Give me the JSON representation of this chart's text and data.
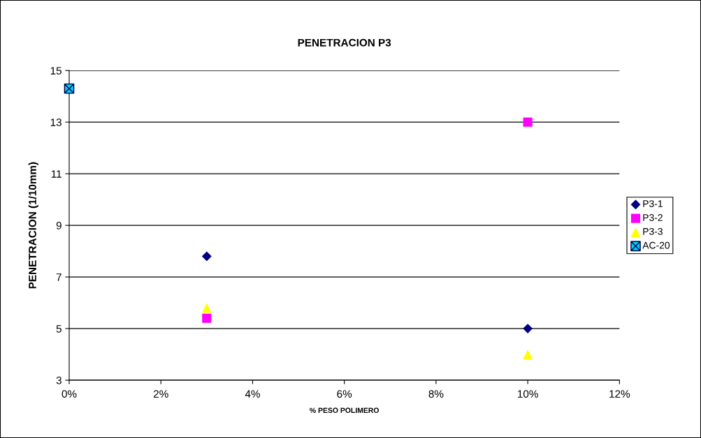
{
  "chart_data": {
    "type": "scatter",
    "title": "PENETRACION P3",
    "xlabel": "% PESO POLIMERO",
    "ylabel": "PENETRACION (1/10mm)",
    "xlim": [
      0,
      12
    ],
    "xticks": [
      {
        "value": 0,
        "label": "0%"
      },
      {
        "value": 2,
        "label": "2%"
      },
      {
        "value": 4,
        "label": "4%"
      },
      {
        "value": 6,
        "label": "6%"
      },
      {
        "value": 8,
        "label": "8%"
      },
      {
        "value": 10,
        "label": "10%"
      },
      {
        "value": 12,
        "label": "12%"
      }
    ],
    "ylim": [
      3,
      15
    ],
    "yticks": [
      3,
      5,
      7,
      9,
      11,
      13,
      15
    ],
    "grid": "y",
    "legend": "right",
    "series": [
      {
        "name": "P3-1",
        "color": "#000080",
        "marker": "diamond",
        "x": [
          3,
          10
        ],
        "values": [
          7.8,
          5.0
        ]
      },
      {
        "name": "P3-2",
        "color": "#ff00ff",
        "marker": "square",
        "x": [
          3,
          10
        ],
        "values": [
          5.4,
          13.0
        ]
      },
      {
        "name": "P3-3",
        "color": "#ffff00",
        "marker": "triangle",
        "x": [
          3,
          10
        ],
        "values": [
          5.8,
          4.0
        ]
      },
      {
        "name": "AC-20",
        "color": "#00ccff",
        "marker": "cross",
        "x": [
          0
        ],
        "values": [
          14.3
        ]
      }
    ]
  }
}
